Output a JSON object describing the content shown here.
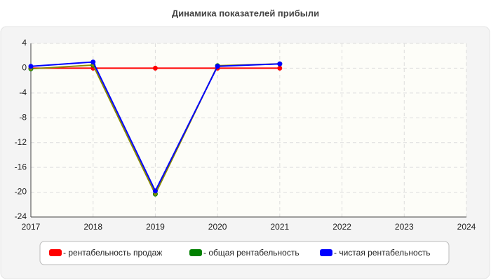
{
  "chart_data": {
    "type": "line",
    "title": "Динамика показателей прибыли",
    "x": [
      2017,
      2018,
      2019,
      2020,
      2021
    ],
    "series": [
      {
        "name": "- рентабельность продаж",
        "color": "#ff0000",
        "line_color": "#ff0000",
        "values": [
          0,
          0,
          0,
          0,
          0
        ]
      },
      {
        "name": "- общая рентабельность",
        "color": "#008000",
        "line_color": "#8a8a00",
        "values": [
          -0.1,
          0.5,
          -20.3,
          0.4,
          0.7
        ]
      },
      {
        "name": "- чистая рентабельность",
        "color": "#0000ff",
        "line_color": "#0000ff",
        "values": [
          0.3,
          1.0,
          -19.8,
          0.3,
          0.7
        ]
      }
    ],
    "xlim": [
      2017,
      2024
    ],
    "xticks": [
      2017,
      2018,
      2019,
      2020,
      2021,
      2022,
      2023,
      2024
    ],
    "ylim": [
      -24,
      4
    ],
    "yticks": [
      4,
      0,
      -4,
      -8,
      -12,
      -16,
      -20,
      -24
    ],
    "grid": true,
    "legend": "bottom"
  }
}
